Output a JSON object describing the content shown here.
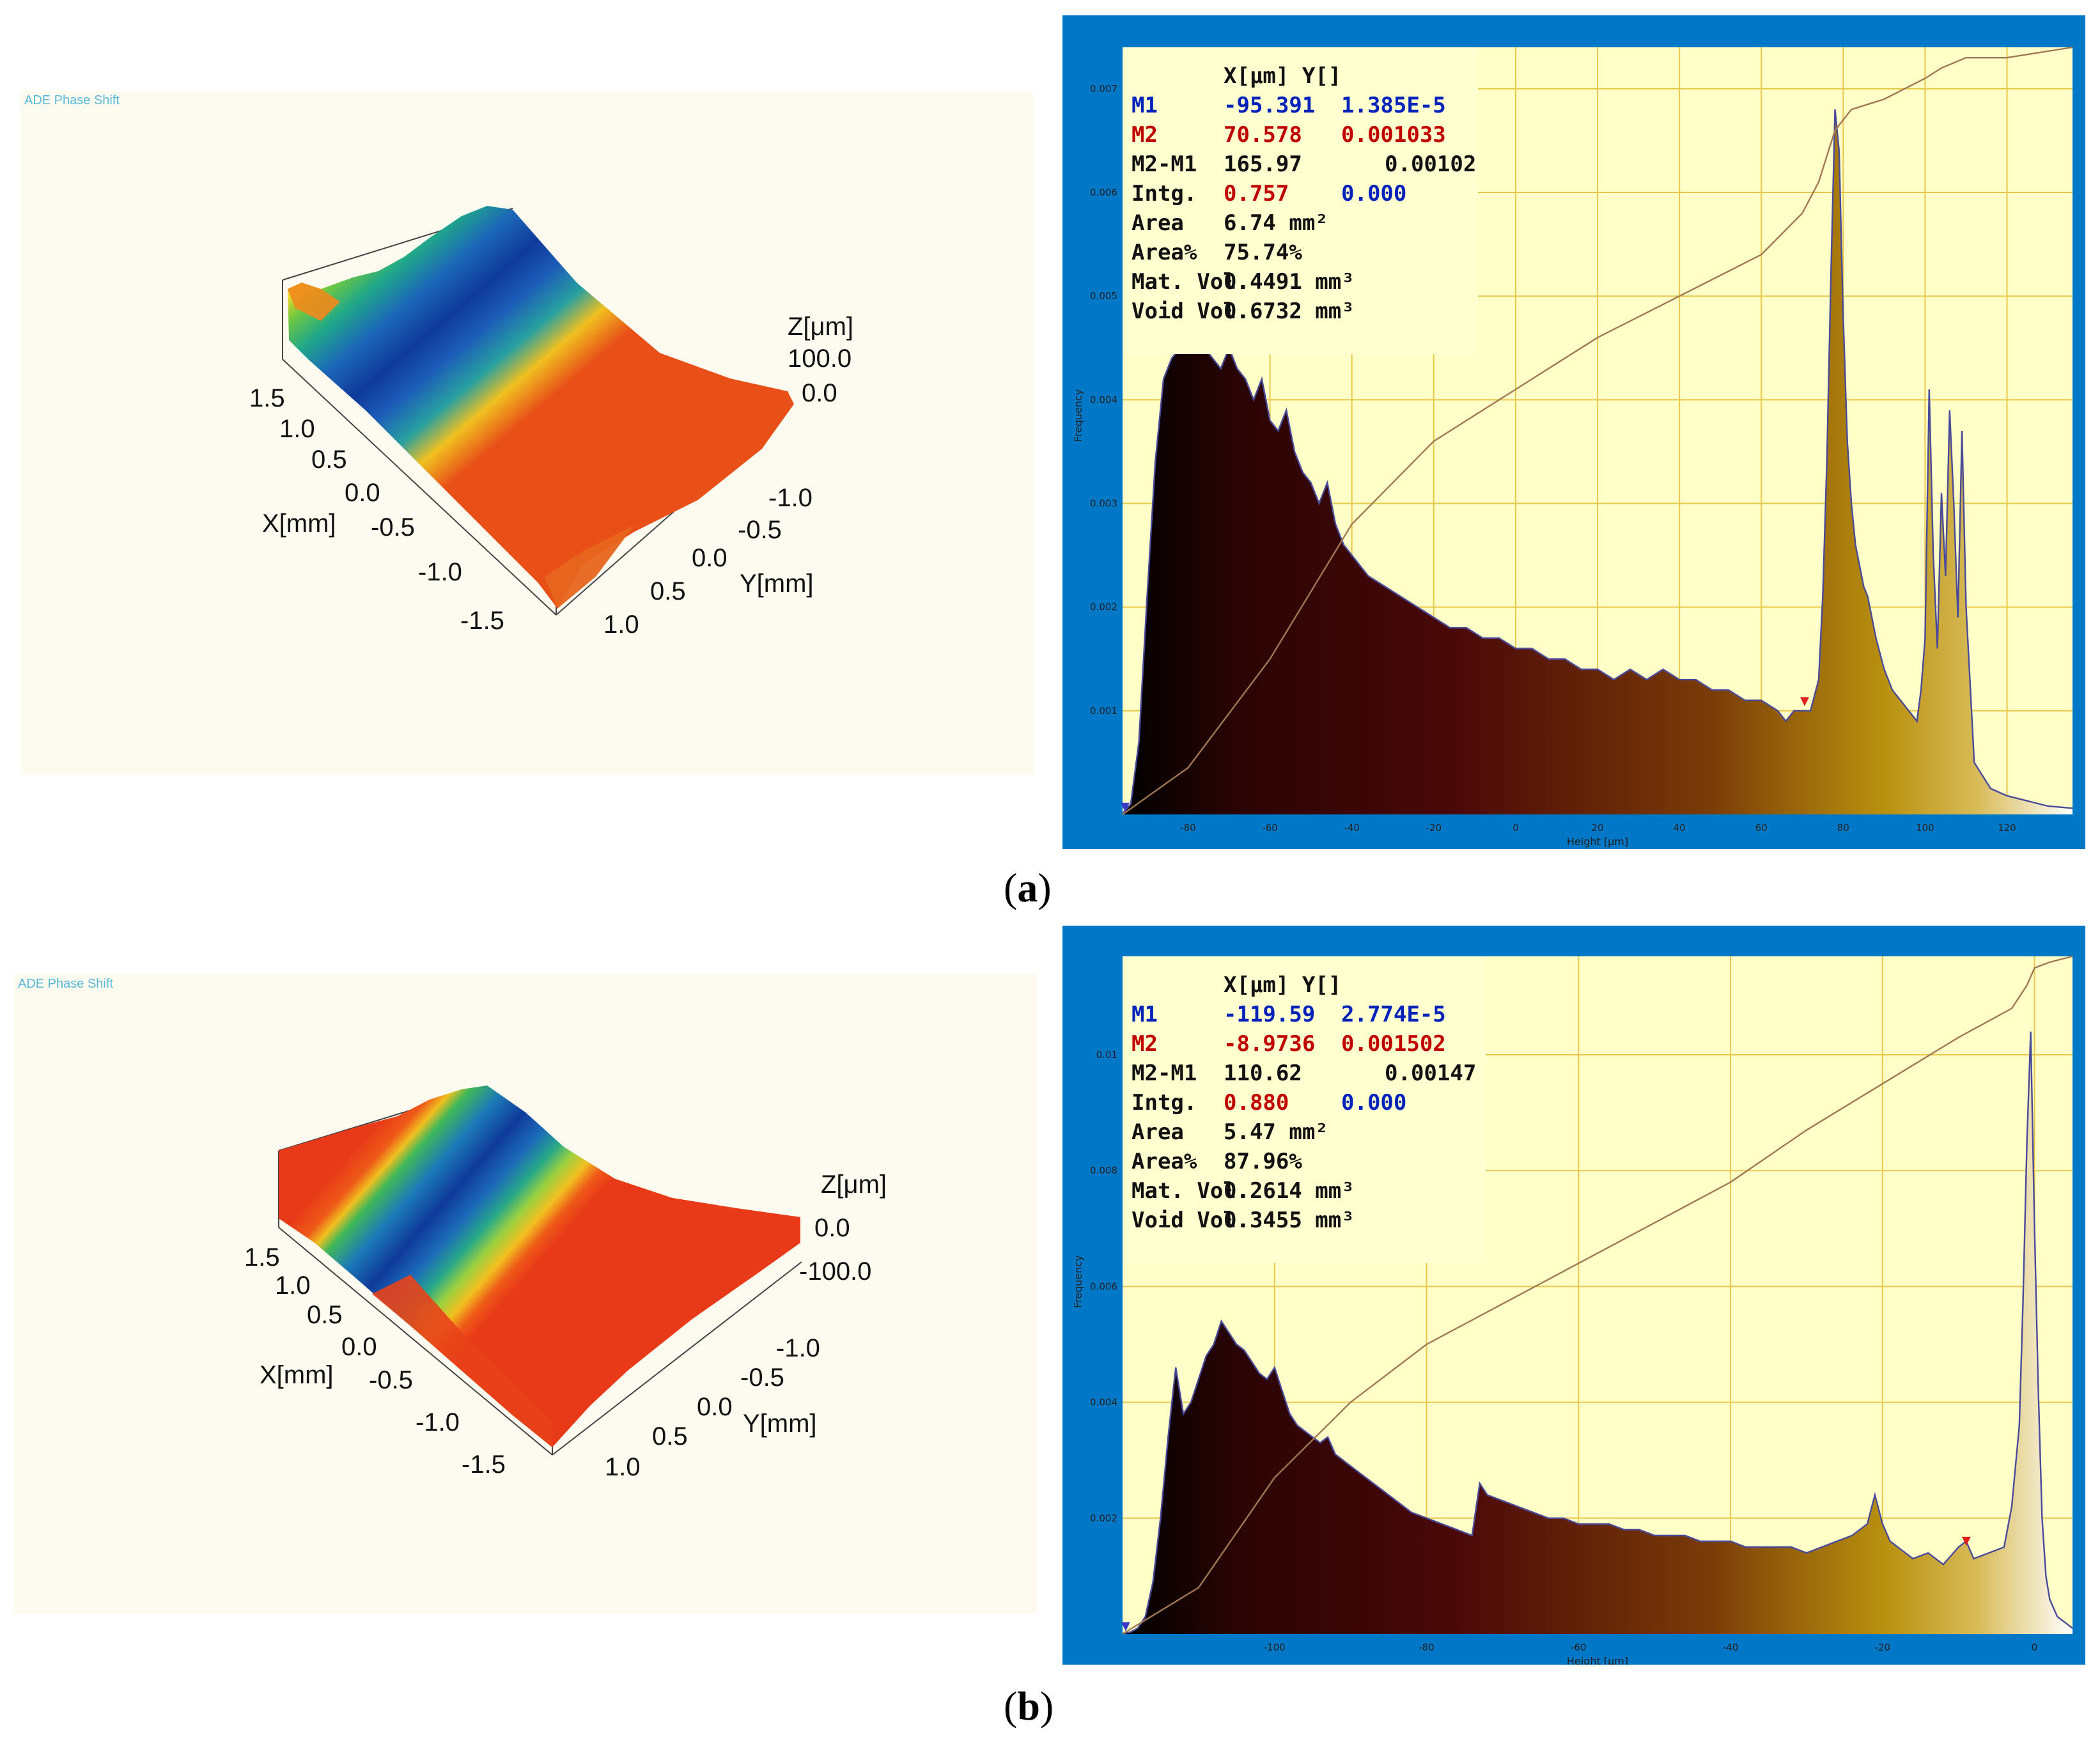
{
  "panels": [
    {
      "id": "a",
      "caption_letter": "a",
      "surface": {
        "app_title": "ADE Phase Shift",
        "z_label": "Z[μm]",
        "z_ticks": [
          "100.0",
          "0.0"
        ],
        "x_label": "X[mm]",
        "x_ticks": [
          "1.5",
          "1.0",
          "0.5",
          "0.0",
          "-0.5",
          "-1.0",
          "-1.5"
        ],
        "y_label": "Y[mm]",
        "y_ticks": [
          "-1.0",
          "-0.5",
          "0.0",
          "0.5",
          "1.0"
        ]
      },
      "readout": {
        "header": "X[μm]   Y[]",
        "rows": [
          {
            "label": "M1",
            "x": "-95.391",
            "y": "1.385E-5",
            "label_color": "#0022bb",
            "x_color": "#0022bb",
            "y_color": "#0022bb"
          },
          {
            "label": "M2",
            "x": "70.578",
            "y": "0.001033",
            "label_color": "#c00000",
            "x_color": "#c00000",
            "y_color": "#c00000"
          },
          {
            "label": "M2-M1",
            "x": "165.97",
            "y": "0.00102",
            "label_color": "#111111",
            "x_color": "#111111",
            "y_color": "#111111"
          },
          {
            "label": "Intg.",
            "x": "0.757",
            "y": "0.000",
            "label_color": "#111111",
            "x_color": "#c00000",
            "y_color": "#0022bb"
          },
          {
            "label": "Area",
            "x": "6.74 mm²",
            "y": "",
            "label_color": "#111111",
            "x_color": "#111111",
            "y_color": "#111111"
          },
          {
            "label": "Area%",
            "x": "75.74%",
            "y": "",
            "label_color": "#111111",
            "x_color": "#111111",
            "y_color": "#111111"
          },
          {
            "label": "Mat. Vol.",
            "x": "0.4491 mm³",
            "y": "",
            "label_color": "#111111",
            "x_color": "#111111",
            "y_color": "#111111"
          },
          {
            "label": "Void Vol.",
            "x": "0.6732 mm³",
            "y": "",
            "label_color": "#111111",
            "x_color": "#111111",
            "y_color": "#111111"
          }
        ]
      }
    },
    {
      "id": "b",
      "caption_letter": "b",
      "surface": {
        "app_title": "ADE Phase Shift",
        "z_label": "Z[μm]",
        "z_ticks": [
          "0.0",
          "-100.0"
        ],
        "x_label": "X[mm]",
        "x_ticks": [
          "1.5",
          "1.0",
          "0.5",
          "0.0",
          "-0.5",
          "-1.0",
          "-1.5"
        ],
        "y_label": "Y[mm]",
        "y_ticks": [
          "-1.0",
          "-0.5",
          "0.0",
          "0.5",
          "1.0"
        ]
      },
      "readout": {
        "header": "X[μm]   Y[]",
        "rows": [
          {
            "label": "M1",
            "x": "-119.59",
            "y": "2.774E-5",
            "label_color": "#0022bb",
            "x_color": "#0022bb",
            "y_color": "#0022bb"
          },
          {
            "label": "M2",
            "x": "-8.9736",
            "y": "0.001502",
            "label_color": "#c00000",
            "x_color": "#c00000",
            "y_color": "#c00000"
          },
          {
            "label": "M2-M1",
            "x": "110.62",
            "y": "0.00147",
            "label_color": "#111111",
            "x_color": "#111111",
            "y_color": "#111111"
          },
          {
            "label": "Intg.",
            "x": "0.880",
            "y": "0.000",
            "label_color": "#111111",
            "x_color": "#c00000",
            "y_color": "#0022bb"
          },
          {
            "label": "Area",
            "x": "5.47 mm²",
            "y": "",
            "label_color": "#111111",
            "x_color": "#111111",
            "y_color": "#111111"
          },
          {
            "label": "Area%",
            "x": "87.96%",
            "y": "",
            "label_color": "#111111",
            "x_color": "#111111",
            "y_color": "#111111"
          },
          {
            "label": "Mat. Vol.",
            "x": "0.2614 mm³",
            "y": "",
            "label_color": "#111111",
            "x_color": "#111111",
            "y_color": "#111111"
          },
          {
            "label": "Void Vol.",
            "x": "0.3455 mm³",
            "y": "",
            "label_color": "#111111",
            "x_color": "#111111",
            "y_color": "#111111"
          }
        ]
      }
    }
  ],
  "colors": {
    "frame_blue": "#0078c8",
    "plot_bg": "#ffffc8",
    "grid": "#e8c84a",
    "outline": "#4a4a9a",
    "cumulative": "#a07855",
    "marker": "#e02020"
  },
  "chart_data": [
    {
      "type": "histogram",
      "panel": "a",
      "xlabel": "Height [μm]",
      "ylabel": "Frequency",
      "xlim": [
        -96,
        136
      ],
      "ylim": [
        0,
        0.0074
      ],
      "xticks": [
        -80,
        -60,
        -40,
        -20,
        0,
        20,
        40,
        60,
        80,
        100,
        120
      ],
      "yticks": [
        0.001,
        0.002,
        0.003,
        0.004,
        0.005,
        0.006,
        0.007
      ],
      "ytick_labels": [
        "0.001",
        "0.002",
        "0.003",
        "0.004",
        "0.005",
        "0.006",
        "0.007"
      ],
      "x": [
        -96,
        -94,
        -92,
        -90,
        -88,
        -86,
        -84,
        -82,
        -80,
        -78,
        -76,
        -74,
        -72,
        -70,
        -68,
        -66,
        -64,
        -62,
        -60,
        -58,
        -56,
        -54,
        -52,
        -50,
        -48,
        -46,
        -44,
        -42,
        -40,
        -36,
        -32,
        -28,
        -24,
        -20,
        -16,
        -12,
        -8,
        -4,
        0,
        4,
        8,
        12,
        16,
        20,
        24,
        28,
        32,
        36,
        40,
        44,
        48,
        52,
        56,
        60,
        64,
        66,
        68,
        70,
        72,
        74,
        75,
        76,
        77,
        78,
        79,
        80,
        81,
        82,
        83,
        84,
        85,
        86,
        88,
        90,
        92,
        94,
        96,
        98,
        99,
        100,
        101,
        102,
        103,
        104,
        105,
        106,
        107,
        108,
        109,
        110,
        112,
        116,
        120,
        126,
        130,
        136
      ],
      "values": [
        1e-05,
        0.0001,
        0.0007,
        0.0021,
        0.0034,
        0.0042,
        0.0044,
        0.0045,
        0.0046,
        0.0046,
        0.0045,
        0.0044,
        0.0043,
        0.0045,
        0.0043,
        0.0042,
        0.004,
        0.0042,
        0.0038,
        0.0037,
        0.0039,
        0.0035,
        0.0033,
        0.0032,
        0.003,
        0.0032,
        0.0028,
        0.0026,
        0.0025,
        0.0023,
        0.0022,
        0.0021,
        0.002,
        0.0019,
        0.0018,
        0.0018,
        0.0017,
        0.0017,
        0.0016,
        0.0016,
        0.0015,
        0.0015,
        0.0014,
        0.0014,
        0.0013,
        0.0014,
        0.0013,
        0.0014,
        0.0013,
        0.0013,
        0.0012,
        0.0012,
        0.0011,
        0.0011,
        0.001,
        0.0009,
        0.001,
        0.001,
        0.001,
        0.0013,
        0.0021,
        0.0034,
        0.0052,
        0.0068,
        0.0064,
        0.0048,
        0.0036,
        0.003,
        0.0026,
        0.0024,
        0.0022,
        0.0021,
        0.0017,
        0.0014,
        0.0012,
        0.0011,
        0.001,
        0.0009,
        0.0012,
        0.0017,
        0.0041,
        0.0025,
        0.0016,
        0.0031,
        0.0023,
        0.0039,
        0.003,
        0.0019,
        0.0037,
        0.002,
        0.0005,
        0.00025,
        0.00018,
        0.00012,
        8e-05,
        6e-05
      ],
      "cumulative": [
        [
          -96,
          0.0
        ],
        [
          -80,
          0.00045
        ],
        [
          -60,
          0.0015
        ],
        [
          -40,
          0.0028
        ],
        [
          -20,
          0.0036
        ],
        [
          0,
          0.0041
        ],
        [
          20,
          0.0046
        ],
        [
          40,
          0.005
        ],
        [
          60,
          0.0054
        ],
        [
          70,
          0.0058
        ],
        [
          74,
          0.0061
        ],
        [
          78,
          0.0066
        ],
        [
          82,
          0.0068
        ],
        [
          90,
          0.0069
        ],
        [
          100,
          0.0071
        ],
        [
          104,
          0.0072
        ],
        [
          110,
          0.0073
        ],
        [
          120,
          0.0073
        ],
        [
          136,
          0.0074
        ]
      ],
      "markers": [
        {
          "name": "M1",
          "x": -95.391,
          "y": 1.385e-05
        },
        {
          "name": "M2",
          "x": 70.578,
          "y": 0.001033
        }
      ]
    },
    {
      "type": "histogram",
      "panel": "b",
      "xlabel": "Height [μm]",
      "ylabel": "Frequency",
      "xlim": [
        -120,
        5
      ],
      "ylim": [
        0,
        0.0117
      ],
      "xticks": [
        -100,
        -80,
        -60,
        -40,
        -20,
        0
      ],
      "yticks": [
        0.002,
        0.004,
        0.006,
        0.008,
        0.01
      ],
      "ytick_labels": [
        "0.002",
        "0.004",
        "0.006",
        "0.008",
        "0.01"
      ],
      "x": [
        -120,
        -119,
        -118,
        -117,
        -116,
        -115,
        -114,
        -113,
        -112,
        -111,
        -110,
        -109,
        -108,
        -107,
        -106,
        -105,
        -104,
        -103,
        -102,
        -101,
        -100,
        -99,
        -98,
        -97,
        -96,
        -95,
        -94,
        -93,
        -92,
        -91,
        -90,
        -88,
        -86,
        -84,
        -82,
        -80,
        -78,
        -76,
        -74,
        -73,
        -72,
        -70,
        -68,
        -66,
        -64,
        -62,
        -60,
        -58,
        -56,
        -54,
        -52,
        -50,
        -48,
        -46,
        -44,
        -42,
        -40,
        -38,
        -36,
        -34,
        -32,
        -30,
        -28,
        -26,
        -24,
        -22,
        -21,
        -20,
        -19,
        -18,
        -16,
        -14,
        -12,
        -10,
        -9,
        -8,
        -6,
        -4,
        -3,
        -2,
        -1.5,
        -1,
        -0.5,
        0,
        0.5,
        1,
        1.5,
        2,
        3,
        4,
        5
      ],
      "values": [
        1e-05,
        3e-05,
        0.0001,
        0.0003,
        0.0009,
        0.002,
        0.0034,
        0.0046,
        0.0038,
        0.004,
        0.0044,
        0.0048,
        0.005,
        0.0054,
        0.0052,
        0.005,
        0.0049,
        0.0047,
        0.0045,
        0.0044,
        0.0046,
        0.0042,
        0.0038,
        0.0036,
        0.0035,
        0.0034,
        0.0033,
        0.0034,
        0.0031,
        0.003,
        0.0029,
        0.0027,
        0.0025,
        0.0023,
        0.0021,
        0.002,
        0.0019,
        0.0018,
        0.0017,
        0.0026,
        0.0024,
        0.0023,
        0.0022,
        0.0021,
        0.002,
        0.002,
        0.0019,
        0.0019,
        0.0019,
        0.0018,
        0.0018,
        0.0017,
        0.0017,
        0.0017,
        0.0016,
        0.0016,
        0.0016,
        0.0015,
        0.0015,
        0.0015,
        0.0015,
        0.0014,
        0.0015,
        0.0016,
        0.0017,
        0.0019,
        0.0024,
        0.0019,
        0.0016,
        0.0015,
        0.0013,
        0.0014,
        0.0012,
        0.0015,
        0.0016,
        0.0013,
        0.0014,
        0.0015,
        0.0022,
        0.0036,
        0.0058,
        0.0085,
        0.0104,
        0.007,
        0.0042,
        0.002,
        0.001,
        0.0006,
        0.0003,
        0.0002,
        0.0001
      ],
      "cumulative": [
        [
          -120,
          0.0
        ],
        [
          -110,
          0.0008
        ],
        [
          -100,
          0.0027
        ],
        [
          -90,
          0.004
        ],
        [
          -80,
          0.005
        ],
        [
          -70,
          0.0057
        ],
        [
          -60,
          0.0064
        ],
        [
          -50,
          0.0071
        ],
        [
          -40,
          0.0078
        ],
        [
          -30,
          0.0087
        ],
        [
          -20,
          0.0095
        ],
        [
          -10,
          0.0103
        ],
        [
          -3,
          0.0108
        ],
        [
          -1,
          0.0112
        ],
        [
          0,
          0.0115
        ],
        [
          2,
          0.0116
        ],
        [
          5,
          0.0117
        ]
      ],
      "markers": [
        {
          "name": "M1",
          "x": -119.59,
          "y": 2.774e-05
        },
        {
          "name": "M2",
          "x": -8.9736,
          "y": 0.001502
        }
      ]
    }
  ]
}
